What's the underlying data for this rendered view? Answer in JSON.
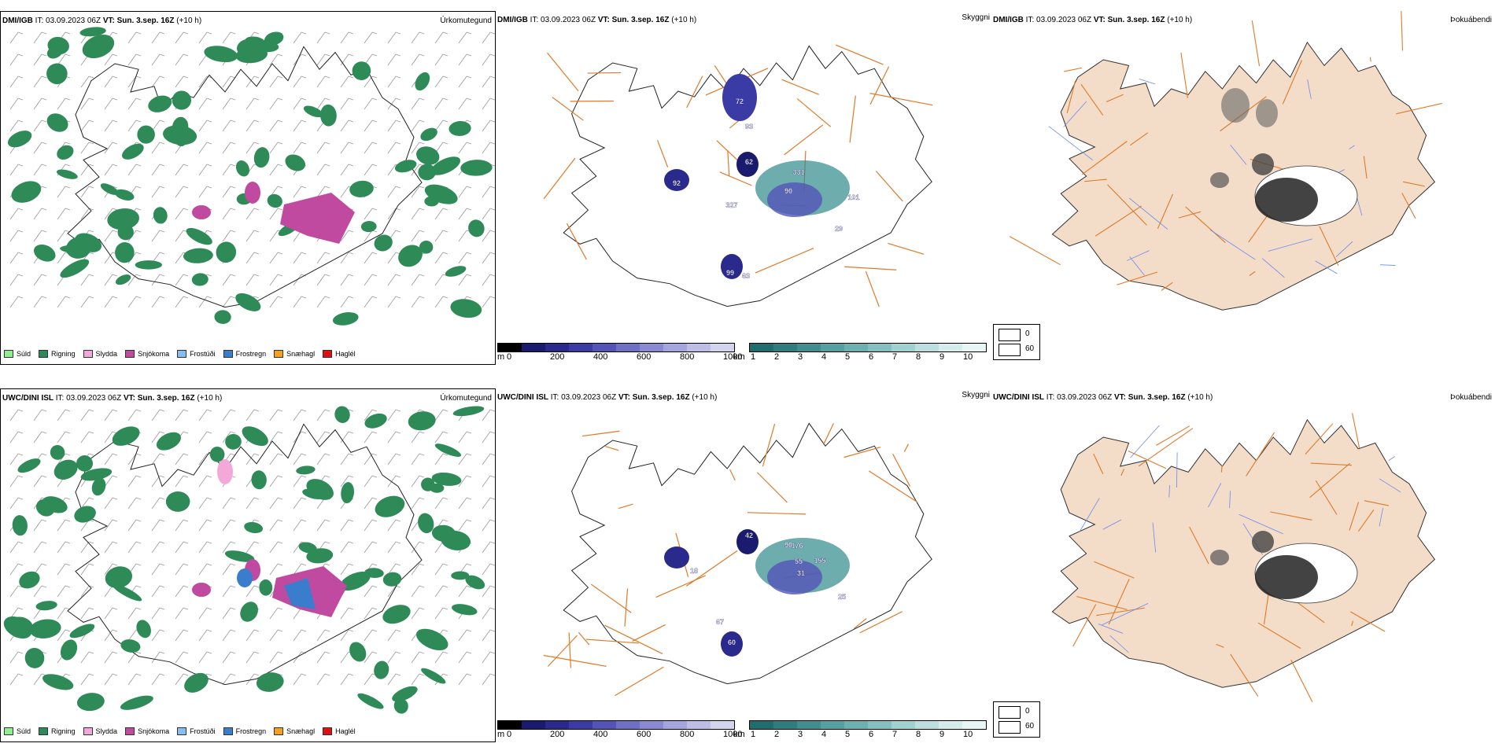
{
  "panels": {
    "dmi": {
      "model": "DMI/IGB",
      "it_label": "IT:",
      "it_value": "03.09.2023 06Z",
      "vt_label": "VT:",
      "vt_value": "Sun. 3.sep. 16Z",
      "lead": "(+10 h)"
    },
    "uwc": {
      "model": "UWC/DINI ISL",
      "it_label": "IT:",
      "it_value": "03.09.2023 06Z",
      "vt_label": "VT:",
      "vt_value": "Sun. 3.sep. 16Z",
      "lead": "(+10 h)"
    }
  },
  "titles": {
    "precip_type": "Úrkomutegund",
    "visibility": "Skyggni",
    "fog": "Þokuábendi"
  },
  "precip_legend": [
    {
      "label": "Súld",
      "color": "#90ee90"
    },
    {
      "label": "Rigning",
      "color": "#2e8b57"
    },
    {
      "label": "Slydda",
      "color": "#f4a8d8"
    },
    {
      "label": "Snjókoma",
      "color": "#c04aa0"
    },
    {
      "label": "Frostúði",
      "color": "#87bff0"
    },
    {
      "label": "Frostregn",
      "color": "#3a7dcc"
    },
    {
      "label": "Snæhagl",
      "color": "#f5a020"
    },
    {
      "label": "Haglél",
      "color": "#e01010"
    }
  ],
  "vis_colorbar": {
    "m_unit": "m",
    "m_ticks": [
      "0",
      "200",
      "400",
      "600",
      "800",
      "1000"
    ],
    "m_colors": [
      "#000000",
      "#1a1a6e",
      "#2a2a8c",
      "#3b3ba6",
      "#5454b8",
      "#6f6fc6",
      "#8a8ad2",
      "#a5a5dd",
      "#bdbde6",
      "#d4d4ee"
    ],
    "km_unit": "km",
    "km_ticks": [
      "1",
      "2",
      "3",
      "4",
      "5",
      "6",
      "7",
      "8",
      "9",
      "10"
    ],
    "km_colors": [
      "#1f6e6e",
      "#2f7e7e",
      "#408e8e",
      "#55a0a0",
      "#6cb0b0",
      "#85c0c0",
      "#a0d0d0",
      "#bcdede",
      "#d4ecec",
      "#e8f6f6"
    ]
  },
  "fog_key": {
    "high_label": "0",
    "low_label": "60",
    "high_color": "#000000",
    "low_color": "#ffffff"
  },
  "map_colors": {
    "rain": "#2e8b57",
    "snow": "#c04aa0",
    "sleet": "#f4a8d8",
    "freezing_rain": "#3a7dcc",
    "roads": "#e07a28",
    "land_fog": "#f3dcc8",
    "rivers": "#6a8af0"
  },
  "vis_values": {
    "dmi": [
      "331",
      "62",
      "92",
      "90",
      "101",
      "327",
      "29",
      "72",
      "93",
      "99",
      "63"
    ],
    "uwc": [
      "42",
      "176",
      "155",
      "55",
      "31",
      "25",
      "67",
      "60",
      "90",
      "18"
    ]
  }
}
